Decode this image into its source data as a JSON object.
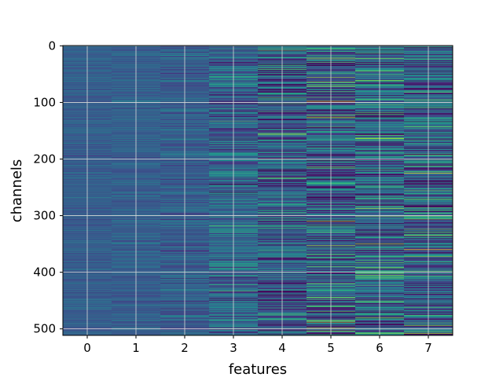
{
  "chart_data": {
    "type": "heatmap",
    "title": "",
    "xlabel": "features",
    "ylabel": "channels",
    "columns": 8,
    "rows": 512,
    "x_ticks": [
      "0",
      "1",
      "2",
      "3",
      "4",
      "5",
      "6",
      "7"
    ],
    "y_ticks": [
      0,
      100,
      200,
      300,
      400,
      500
    ],
    "y_axis_inverted": true,
    "colormap": "viridis",
    "grid": true,
    "column_contrast": [
      0.12,
      0.14,
      0.22,
      0.38,
      0.55,
      0.62,
      0.58,
      0.6
    ],
    "column_mean": [
      0.3,
      0.3,
      0.3,
      0.33,
      0.3,
      0.3,
      0.33,
      0.33
    ],
    "highlight_rows": [
      {
        "column": 4,
        "row": 155,
        "value": 0.85
      },
      {
        "column": 4,
        "row": 200,
        "value": 0.75
      },
      {
        "column": 5,
        "row": 98,
        "value": 0.95
      },
      {
        "column": 5,
        "row": 310,
        "value": 0.9
      },
      {
        "column": 5,
        "row": 420,
        "value": 0.8
      },
      {
        "column": 6,
        "row": 350,
        "value": 0.85
      },
      {
        "column": 6,
        "row": 480,
        "value": 0.8
      },
      {
        "column": 7,
        "row": 225,
        "value": 0.95
      },
      {
        "column": 7,
        "row": 335,
        "value": 0.85
      }
    ]
  }
}
